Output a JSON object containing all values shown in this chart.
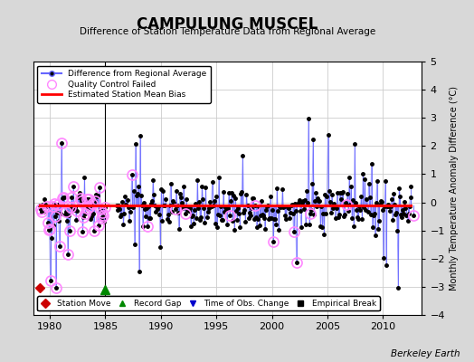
{
  "title": "CAMPULUNG MUSCEL",
  "subtitle": "Difference of Station Temperature Data from Regional Average",
  "ylabel": "Monthly Temperature Anomaly Difference (°C)",
  "xlabel_credit": "Berkeley Earth",
  "xlim": [
    1978.5,
    2013.5
  ],
  "ylim": [
    -4,
    5
  ],
  "yticks": [
    -4,
    -3,
    -2,
    -1,
    0,
    1,
    2,
    3,
    4,
    5
  ],
  "xticks": [
    1980,
    1985,
    1990,
    1995,
    2000,
    2005,
    2010
  ],
  "mean_bias": -0.12,
  "bg_color": "#d8d8d8",
  "plot_bg_color": "#ffffff",
  "line_color": "#6666ff",
  "dot_color": "#000000",
  "bias_color": "#ff0000",
  "qc_color": "#ff88ff",
  "station_move_color": "#cc0000",
  "record_gap_color": "#008800",
  "obs_change_color": "#0000cc",
  "empirical_break_color": "#000000"
}
